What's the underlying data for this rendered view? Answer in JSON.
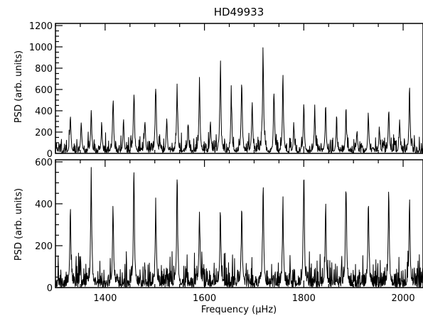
{
  "chart_data": [
    {
      "type": "line",
      "title": "HD49933",
      "ylabel": "PSD (arb. units)",
      "xlabel": "",
      "xlim": [
        1300,
        2040
      ],
      "ylim": [
        0,
        1220
      ],
      "xticks": [
        1400,
        1600,
        1800,
        2000
      ],
      "yticks": [
        0,
        200,
        400,
        600,
        800,
        1000,
        1200
      ],
      "noise_level": 90,
      "peaks": {
        "x": [
          1330,
          1352,
          1372,
          1393,
          1416,
          1437,
          1458,
          1480,
          1502,
          1524,
          1545,
          1567,
          1590,
          1612,
          1632,
          1654,
          1675,
          1696,
          1718,
          1740,
          1758,
          1780,
          1800,
          1822,
          1844,
          1866,
          1885,
          1907,
          1930,
          1952,
          1971,
          1993,
          2013
        ],
        "y": [
          390,
          330,
          450,
          280,
          540,
          320,
          630,
          350,
          700,
          350,
          690,
          310,
          700,
          340,
          930,
          600,
          750,
          520,
          1070,
          620,
          760,
          300,
          500,
          440,
          480,
          350,
          420,
          230,
          390,
          270,
          430,
          320,
          670
        ]
      }
    },
    {
      "type": "line",
      "title": "",
      "ylabel": "PSD (arb. units)",
      "xlabel": "Frequency (μHz)",
      "xlim": [
        1300,
        2040
      ],
      "ylim": [
        0,
        610
      ],
      "xticks": [
        1400,
        1600,
        1800,
        2000
      ],
      "yticks": [
        0,
        200,
        400,
        600
      ],
      "noise_level": 75,
      "peaks": {
        "x": [
          1330,
          1372,
          1416,
          1458,
          1502,
          1545,
          1590,
          1632,
          1675,
          1718,
          1758,
          1800,
          1844,
          1885,
          1930,
          1971,
          2013
        ],
        "y": [
          385,
          555,
          385,
          580,
          400,
          550,
          415,
          395,
          415,
          520,
          405,
          580,
          385,
          550,
          420,
          460,
          415
        ]
      }
    }
  ]
}
